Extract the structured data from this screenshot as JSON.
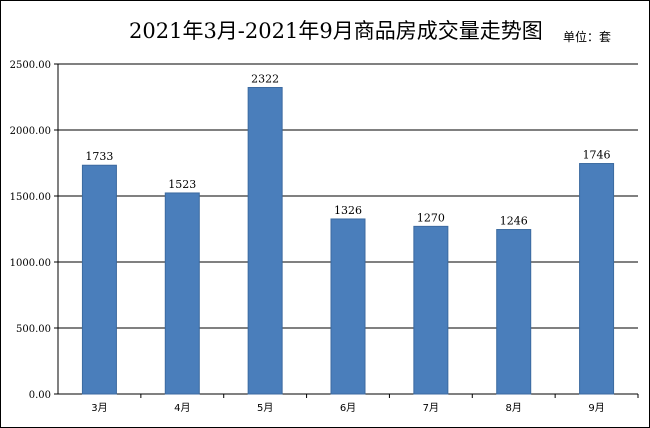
{
  "chart_data": {
    "type": "bar",
    "title": "2021年3月-2021年9月商品房成交量走势图",
    "unit_label": "单位：套",
    "categories": [
      "3月",
      "4月",
      "5月",
      "6月",
      "7月",
      "8月",
      "9月"
    ],
    "values": [
      1733,
      1523,
      2322,
      1326,
      1270,
      1246,
      1746
    ],
    "data_labels": [
      "1733",
      "1523",
      "2322",
      "1326",
      "1270",
      "1246",
      "1746"
    ],
    "ylim": [
      0,
      2500
    ],
    "yticks": [
      0,
      500,
      1000,
      1500,
      2000,
      2500
    ],
    "ytick_labels": [
      "0.00",
      "500.00",
      "1000.00",
      "1500.00",
      "2000.00",
      "2500.00"
    ],
    "grid": true,
    "bar_color": "#4a7ebb",
    "legend": "none"
  }
}
